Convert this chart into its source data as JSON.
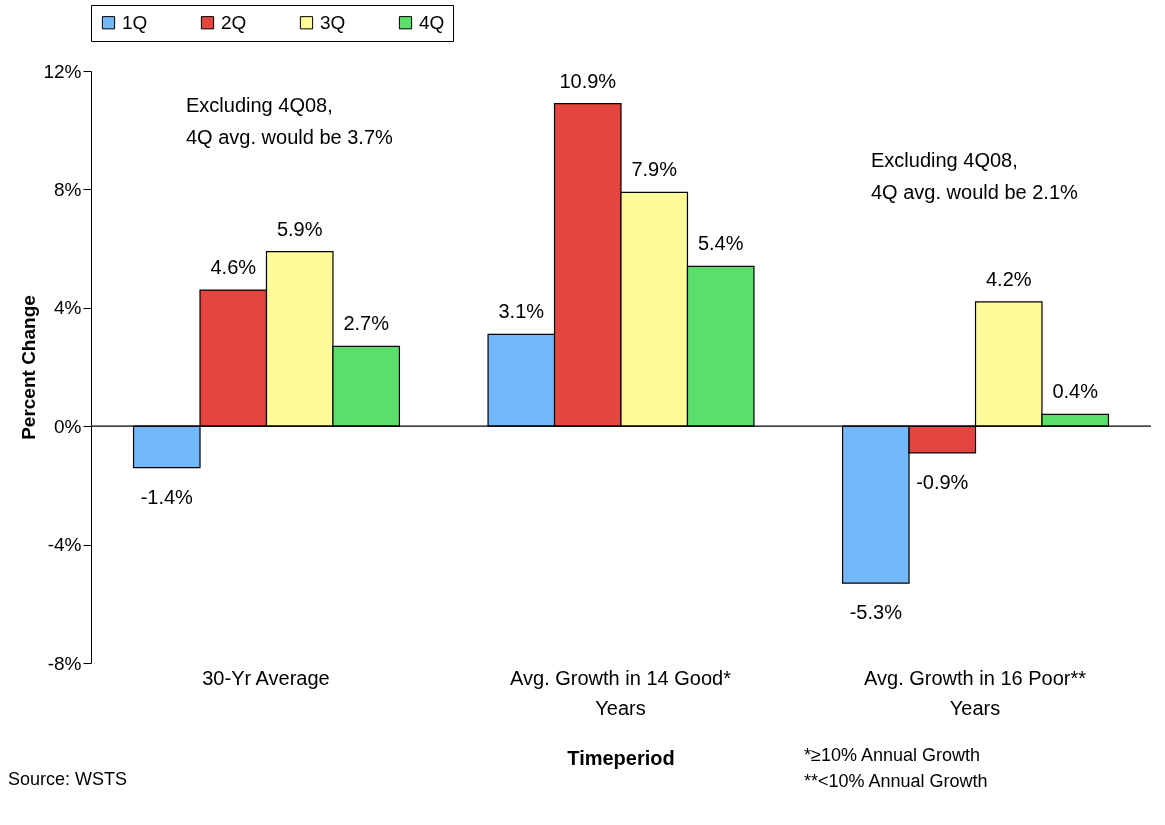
{
  "chart_data": {
    "type": "bar",
    "xlabel": "Timeperiod",
    "ylabel": "Percent Change",
    "categories": [
      "30-Yr Average",
      "Avg. Growth in 14 Good*\nYears",
      "Avg. Growth in 16 Poor**\nYears"
    ],
    "series": [
      {
        "name": "1Q",
        "color": "#74b8fc",
        "values": [
          -1.4,
          3.1,
          -5.3
        ],
        "value_labels": [
          "-1.4%",
          "3.1%",
          "-5.3%"
        ]
      },
      {
        "name": "2Q",
        "color": "#e4463f",
        "values": [
          4.6,
          10.9,
          -0.9
        ],
        "value_labels": [
          "4.6%",
          "10.9%",
          "-0.9%"
        ]
      },
      {
        "name": "3Q",
        "color": "#fdfa99",
        "values": [
          5.9,
          7.9,
          4.2
        ],
        "value_labels": [
          "5.9%",
          "7.9%",
          "4.2%"
        ]
      },
      {
        "name": "4Q",
        "color": "#5ae06a",
        "values": [
          2.7,
          5.4,
          0.4
        ],
        "value_labels": [
          "2.7%",
          "5.4%",
          "0.4%"
        ]
      }
    ],
    "ylim": [
      -8,
      12
    ],
    "yticks": [
      {
        "value": -8,
        "label": "-8%"
      },
      {
        "value": -4,
        "label": "-4%"
      },
      {
        "value": 0,
        "label": "0%"
      },
      {
        "value": 4,
        "label": "4%"
      },
      {
        "value": 8,
        "label": "8%"
      },
      {
        "value": 12,
        "label": "12%"
      }
    ],
    "legend": "top",
    "annotations": [
      "Excluding 4Q08,\n4Q avg. would be 3.7%",
      "Excluding 4Q08,\n4Q avg. would be 2.1%",
      "Source: WSTS",
      "*≥10% Annual Growth\n**<10% Annual Growth"
    ]
  }
}
